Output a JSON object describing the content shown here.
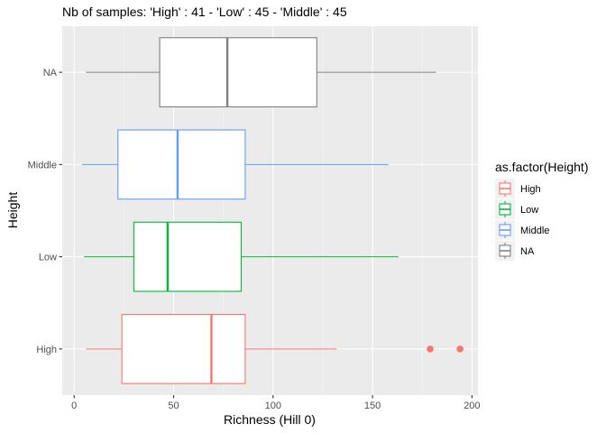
{
  "chart_data": {
    "type": "boxplot",
    "orientation": "horizontal",
    "title": "Nb of samples: 'High' : 41 - 'Low' : 45 - 'Middle' : 45",
    "xlabel": "Richness (Hill 0)",
    "ylabel": "Height",
    "xlim": [
      -6,
      203
    ],
    "x_ticks": [
      0,
      50,
      100,
      150,
      200
    ],
    "x_tick_labels": [
      "0",
      "50",
      "100",
      "150",
      "200"
    ],
    "categories": [
      "High",
      "Low",
      "Middle",
      "NA"
    ],
    "grid": true,
    "legend": {
      "title": "as.factor(Height)",
      "position": "right",
      "entries": [
        "High",
        "Low",
        "Middle",
        "NA"
      ]
    },
    "series": [
      {
        "label": "High",
        "color": "#F8766D",
        "whisker_low": 6,
        "q1": 24,
        "median": 69,
        "q3": 86,
        "whisker_high": 132,
        "outliers": [
          179,
          194
        ]
      },
      {
        "label": "Low",
        "color": "#00BA38",
        "whisker_low": 5,
        "q1": 30,
        "median": 47,
        "q3": 84,
        "whisker_high": 163,
        "outliers": []
      },
      {
        "label": "Middle",
        "color": "#619CFF",
        "whisker_low": 4,
        "q1": 22,
        "median": 52,
        "q3": 86,
        "whisker_high": 158,
        "outliers": []
      },
      {
        "label": "NA",
        "color": "#808080",
        "whisker_low": 6,
        "q1": 43,
        "median": 77,
        "q3": 122,
        "whisker_high": 182,
        "outliers": []
      }
    ]
  }
}
